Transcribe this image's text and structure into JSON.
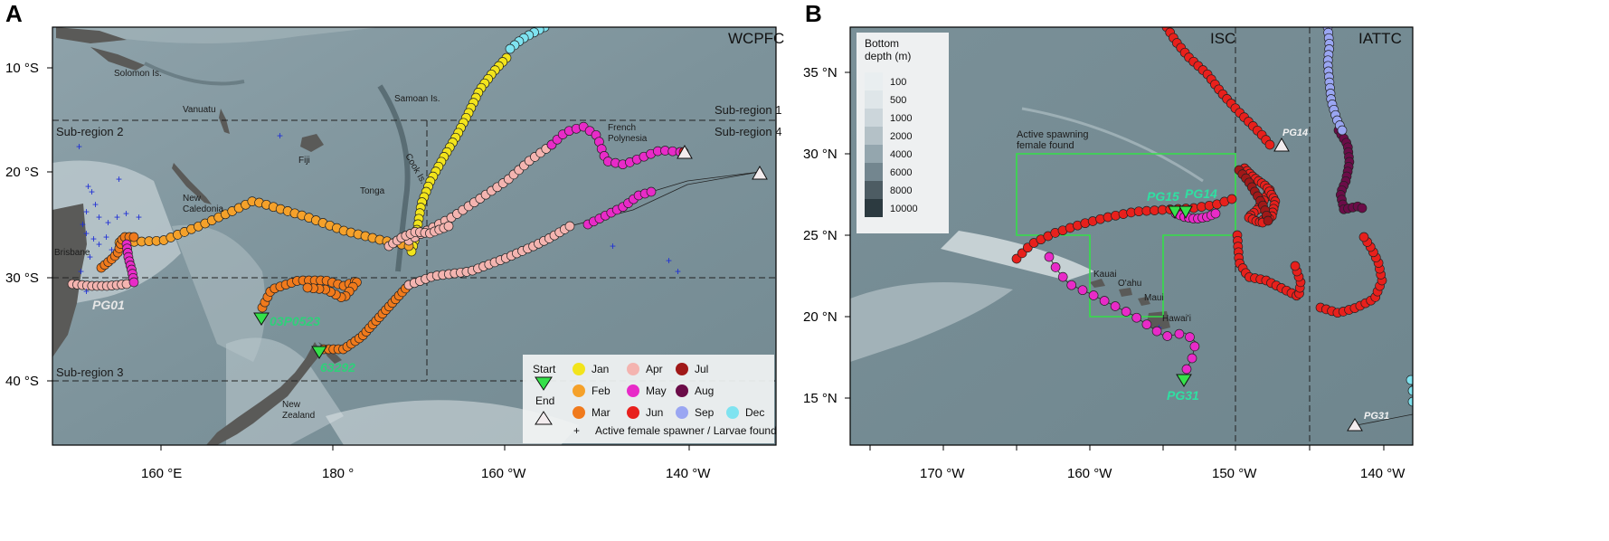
{
  "panels": {
    "a": {
      "letter": "A",
      "rfmo": "WCPFC",
      "lat_ticks": [
        "10 °S",
        "20 °S",
        "30 °S",
        "40 °S"
      ],
      "lon_ticks": [
        "160 °E",
        "180 °",
        "160 °W",
        "140 °W"
      ],
      "subregions": [
        "Sub-region 1",
        "Sub-region 2",
        "Sub-region 3",
        "Sub-region 4"
      ],
      "places": [
        "Solomon Is.",
        "Vanuatu",
        "Samoan Is.",
        "French",
        "Polynesia",
        "Fiji",
        "Cook Is.",
        "Tonga",
        "New",
        "Caledonia",
        "Brisbane",
        "New",
        "Zealand"
      ],
      "tags": [
        "PG01",
        "03P0523",
        "63292"
      ]
    },
    "b": {
      "letter": "B",
      "rfmo_left": "ISC",
      "rfmo_right": "IATTC",
      "lat_ticks": [
        "15 °N",
        "20 °N",
        "25 °N",
        "30 °N",
        "35 °N"
      ],
      "lon_ticks": [
        "170 °W",
        "160 °W",
        "150 °W",
        "140 °W"
      ],
      "places": [
        "Kauai",
        "O'ahu",
        "Maui",
        "Hawai'i"
      ],
      "box_label": [
        "Active spawning",
        "female found"
      ],
      "tags": [
        "PG15",
        "PG14",
        "PG14",
        "PG31",
        "PG31"
      ]
    }
  },
  "legend": {
    "start": "Start",
    "end": "End",
    "months": [
      {
        "label": "Jan",
        "color": "#f2e41c"
      },
      {
        "label": "Feb",
        "color": "#f5a12a"
      },
      {
        "label": "Mar",
        "color": "#f07a1c"
      },
      {
        "label": "Apr",
        "color": "#f4b4b0"
      },
      {
        "label": "May",
        "color": "#e82bc8"
      },
      {
        "label": "Jun",
        "color": "#e8201c"
      },
      {
        "label": "Jul",
        "color": "#a01818"
      },
      {
        "label": "Aug",
        "color": "#6b0c48"
      },
      {
        "label": "Sep",
        "color": "#9aa6f2"
      },
      {
        "label": "Dec",
        "color": "#7fe3f0"
      }
    ],
    "spawner": "Active female spawner / Larvae found"
  },
  "depth_legend": {
    "title": [
      "Bottom",
      "depth (m)"
    ],
    "levels": [
      {
        "label": "100",
        "color": "#e9eef0"
      },
      {
        "label": "500",
        "color": "#dfe6e9"
      },
      {
        "label": "1000",
        "color": "#ccd6db"
      },
      {
        "label": "2000",
        "color": "#b4c1c7"
      },
      {
        "label": "4000",
        "color": "#94a6ae"
      },
      {
        "label": "6000",
        "color": "#73868f"
      },
      {
        "label": "8000",
        "color": "#4d5c63"
      },
      {
        "label": "10000",
        "color": "#2c3a40"
      }
    ]
  }
}
